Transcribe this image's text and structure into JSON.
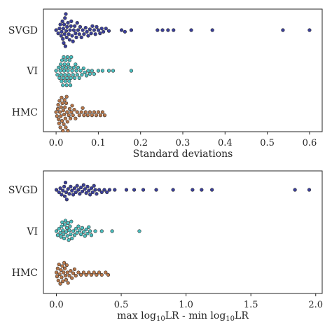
{
  "chart_data": [
    {
      "type": "scatter",
      "subtype": "swarm",
      "orientation": "horizontal",
      "xlabel_parts": [
        {
          "text": "Standard deviations",
          "kind": "normal"
        }
      ],
      "xlim": [
        -0.03,
        0.63
      ],
      "xticks": [
        0.0,
        0.1,
        0.2,
        0.3,
        0.4,
        0.5,
        0.6
      ],
      "xtick_labels": [
        "0.0",
        "0.1",
        "0.2",
        "0.3",
        "0.4",
        "0.5",
        "0.6"
      ],
      "grid": false,
      "categories": [
        "SVGD",
        "VI",
        "HMC"
      ],
      "series": [
        {
          "category": "SVGD",
          "color": "#3b3f9c",
          "values": [
            0.0,
            0.005,
            0.008,
            0.01,
            0.012,
            0.013,
            0.015,
            0.016,
            0.017,
            0.018,
            0.019,
            0.02,
            0.021,
            0.022,
            0.023,
            0.024,
            0.025,
            0.026,
            0.028,
            0.03,
            0.032,
            0.033,
            0.035,
            0.036,
            0.038,
            0.04,
            0.042,
            0.044,
            0.046,
            0.048,
            0.05,
            0.052,
            0.055,
            0.057,
            0.06,
            0.063,
            0.066,
            0.07,
            0.073,
            0.076,
            0.08,
            0.083,
            0.086,
            0.09,
            0.093,
            0.096,
            0.1,
            0.104,
            0.108,
            0.112,
            0.118,
            0.125,
            0.155,
            0.163,
            0.178,
            0.24,
            0.252,
            0.265,
            0.278,
            0.32,
            0.37,
            0.537,
            0.6
          ]
        },
        {
          "category": "VI",
          "color": "#4bbfbf",
          "values": [
            0.0,
            0.003,
            0.006,
            0.008,
            0.01,
            0.011,
            0.012,
            0.013,
            0.014,
            0.015,
            0.016,
            0.017,
            0.018,
            0.019,
            0.02,
            0.021,
            0.022,
            0.023,
            0.024,
            0.025,
            0.026,
            0.027,
            0.028,
            0.029,
            0.03,
            0.031,
            0.032,
            0.033,
            0.034,
            0.035,
            0.036,
            0.038,
            0.04,
            0.042,
            0.044,
            0.046,
            0.048,
            0.05,
            0.052,
            0.055,
            0.058,
            0.061,
            0.065,
            0.068,
            0.072,
            0.076,
            0.08,
            0.085,
            0.09,
            0.1,
            0.11,
            0.125,
            0.135,
            0.178
          ]
        },
        {
          "category": "HMC",
          "color": "#b97749",
          "values": [
            0.0,
            0.002,
            0.004,
            0.005,
            0.006,
            0.007,
            0.008,
            0.009,
            0.01,
            0.011,
            0.012,
            0.013,
            0.014,
            0.015,
            0.016,
            0.017,
            0.018,
            0.019,
            0.02,
            0.021,
            0.022,
            0.023,
            0.024,
            0.025,
            0.026,
            0.027,
            0.028,
            0.03,
            0.032,
            0.034,
            0.036,
            0.038,
            0.04,
            0.043,
            0.046,
            0.05,
            0.055,
            0.06,
            0.063,
            0.066,
            0.07,
            0.075,
            0.08,
            0.085,
            0.09,
            0.095,
            0.1,
            0.105,
            0.11,
            0.115
          ]
        }
      ]
    },
    {
      "type": "scatter",
      "subtype": "swarm",
      "orientation": "horizontal",
      "xlabel_parts": [
        {
          "text": "max log",
          "kind": "normal"
        },
        {
          "text": "10",
          "kind": "sub"
        },
        {
          "text": "LR - min log",
          "kind": "normal"
        },
        {
          "text": "10",
          "kind": "sub"
        },
        {
          "text": "LR",
          "kind": "normal"
        }
      ],
      "xlim": [
        -0.1,
        2.05
      ],
      "xticks": [
        0.0,
        0.5,
        1.0,
        1.5,
        2.0
      ],
      "xtick_labels": [
        "0.0",
        "0.5",
        "1.0",
        "1.5",
        "2.0"
      ],
      "grid": false,
      "categories": [
        "SVGD",
        "VI",
        "HMC"
      ],
      "series": [
        {
          "category": "SVGD",
          "color": "#3b3f9c",
          "values": [
            0.0,
            0.02,
            0.03,
            0.04,
            0.05,
            0.06,
            0.065,
            0.07,
            0.075,
            0.08,
            0.09,
            0.1,
            0.11,
            0.12,
            0.13,
            0.14,
            0.15,
            0.16,
            0.17,
            0.18,
            0.19,
            0.2,
            0.21,
            0.22,
            0.23,
            0.24,
            0.25,
            0.26,
            0.27,
            0.28,
            0.29,
            0.3,
            0.31,
            0.33,
            0.35,
            0.37,
            0.39,
            0.41,
            0.45,
            0.54,
            0.6,
            0.67,
            0.77,
            0.9,
            1.05,
            1.12,
            1.2,
            1.84,
            1.95
          ]
        },
        {
          "category": "VI",
          "color": "#4bbfbf",
          "values": [
            0.0,
            0.01,
            0.02,
            0.03,
            0.035,
            0.04,
            0.045,
            0.05,
            0.055,
            0.06,
            0.065,
            0.07,
            0.075,
            0.08,
            0.085,
            0.09,
            0.095,
            0.1,
            0.105,
            0.11,
            0.115,
            0.12,
            0.13,
            0.14,
            0.15,
            0.16,
            0.17,
            0.18,
            0.19,
            0.2,
            0.21,
            0.22,
            0.23,
            0.24,
            0.25,
            0.26,
            0.27,
            0.3,
            0.35,
            0.43,
            0.64
          ]
        },
        {
          "category": "HMC",
          "color": "#b97749",
          "values": [
            0.0,
            0.005,
            0.01,
            0.015,
            0.02,
            0.025,
            0.03,
            0.035,
            0.04,
            0.045,
            0.05,
            0.055,
            0.06,
            0.065,
            0.07,
            0.075,
            0.08,
            0.085,
            0.09,
            0.1,
            0.11,
            0.12,
            0.13,
            0.14,
            0.15,
            0.17,
            0.19,
            0.21,
            0.23,
            0.25,
            0.27,
            0.29,
            0.31,
            0.33,
            0.35,
            0.38,
            0.4
          ]
        }
      ]
    }
  ]
}
